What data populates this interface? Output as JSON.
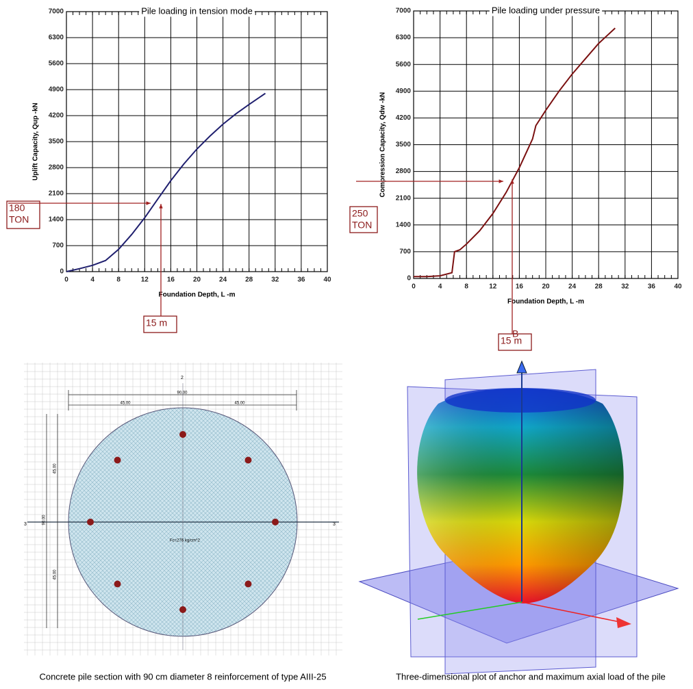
{
  "chart_data": [
    {
      "type": "line",
      "title": "Pile loading in tension mode",
      "x_label": "Foundation Depth,  L -m",
      "y_label": "Uplift Capacity,  Qup -kN",
      "x": [
        0,
        2,
        4,
        6,
        8,
        10,
        12,
        14,
        16,
        18,
        20,
        22,
        24,
        26,
        28,
        30.5
      ],
      "values": [
        0,
        80,
        170,
        300,
        600,
        1000,
        1450,
        1950,
        2450,
        2900,
        3300,
        3650,
        3970,
        4250,
        4500,
        4800
      ],
      "color": "#1f1f6e",
      "xlim": [
        0,
        40
      ],
      "ylim": [
        0,
        7000
      ],
      "xticks": [
        0,
        4,
        8,
        12,
        16,
        20,
        24,
        28,
        32,
        36,
        40
      ],
      "yticks": [
        0,
        700,
        1400,
        2100,
        2800,
        3500,
        4200,
        4900,
        5600,
        6300,
        7000
      ],
      "grid": true,
      "annotations": [
        {
          "text": [
            "180",
            "TON"
          ]
        },
        {
          "text": [
            "15 m"
          ]
        }
      ]
    },
    {
      "type": "line",
      "title": "Pile loading under pressure",
      "x_label": "Foundation Depth,  L -m",
      "y_label": "Compression Capacity,  Qdw -kN",
      "x": [
        0,
        2,
        4,
        5.8,
        6.2,
        7,
        8,
        10,
        12,
        14,
        16,
        18,
        18.5,
        20,
        22,
        24,
        26,
        28,
        30.5
      ],
      "values": [
        50,
        50,
        70,
        150,
        700,
        750,
        900,
        1250,
        1700,
        2250,
        2900,
        3650,
        4000,
        4400,
        4900,
        5350,
        5750,
        6150,
        6550
      ],
      "color": "#7a1010",
      "xlim": [
        0,
        40
      ],
      "ylim": [
        0,
        7000
      ],
      "xticks": [
        0,
        4,
        8,
        12,
        16,
        20,
        24,
        28,
        32,
        36,
        40
      ],
      "yticks": [
        0,
        700,
        1400,
        2100,
        2800,
        3500,
        4200,
        4900,
        5600,
        6300,
        7000
      ],
      "grid": true,
      "annotations": [
        {
          "text": [
            "250",
            "TON"
          ]
        },
        {
          "text": [
            "15 m"
          ]
        },
        {
          "text": [
            "B"
          ]
        }
      ]
    }
  ],
  "section": {
    "caption": "Concrete pile section with 90 cm diameter 8 reinforcement of type AIII-25",
    "labels": {
      "top_axis": "2",
      "left_axis": "3",
      "right_axis": "3",
      "width": "90.00",
      "half_left": "45.00",
      "half_right": "45.00",
      "height": "90.00",
      "half_top": "45.00",
      "half_bottom": "45.00",
      "concrete": "Fc=276 kg/cm^2"
    }
  },
  "plot3d": {
    "caption": "Three-dimensional plot of anchor and maximum axial load of the pile"
  }
}
